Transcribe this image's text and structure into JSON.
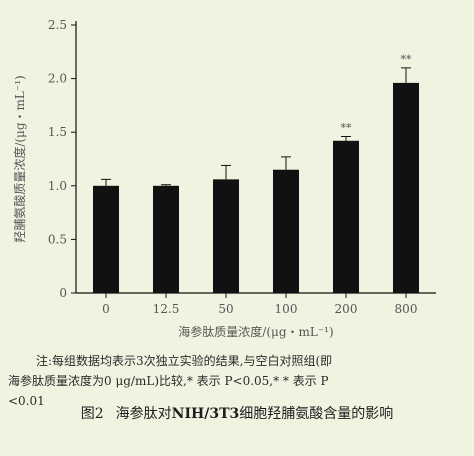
{
  "chart_data": {
    "type": "bar",
    "categories": [
      "0",
      "12.5",
      "50",
      "100",
      "200",
      "800"
    ],
    "values": [
      1.0,
      1.0,
      1.06,
      1.15,
      1.42,
      1.96
    ],
    "errors": [
      0.06,
      0.01,
      0.13,
      0.12,
      0.04,
      0.14
    ],
    "significance": [
      "",
      "",
      "",
      "",
      "**",
      "**"
    ],
    "ylim": [
      0,
      2.5
    ],
    "yticks": [
      "0",
      "0.5",
      "1.0",
      "1.5",
      "2.0",
      "2.5"
    ],
    "ylabel": "羟脯氨酸质量浓度/(μg・mL⁻¹)",
    "xlabel": "海参肽质量浓度/(μg・mL⁻¹)",
    "bar_color": "#111111",
    "label_color": "#555555"
  },
  "note": {
    "line1": "注:每组数据均表示3次独立实验的结果,与空白对照组(即",
    "line2": "海参肽质量浓度为0 μg/mL)比较,* 表示 P<0.05,* * 表示 P",
    "line3": "<0.01"
  },
  "caption": {
    "fig": "图2",
    "pre": "海参肽对",
    "bold": "NIH/3T3",
    "post": "细胞羟脯氨酸含量的影响"
  }
}
